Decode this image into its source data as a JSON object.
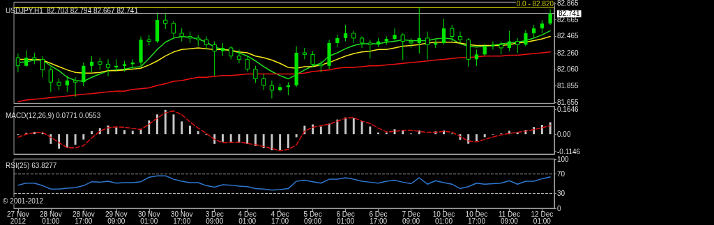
{
  "chart_data": [
    {
      "type": "candlestick",
      "title": "USDJPY,H1  82.703 82.794 82.667 82.741",
      "color": "#00e600",
      "marker": "none",
      "grid": false,
      "tick_labels": "y",
      "categories": [
        null,
        null,
        null,
        null,
        null,
        null,
        null,
        null,
        null,
        null,
        null,
        null,
        null,
        null,
        null,
        null,
        null,
        null,
        null,
        null,
        null,
        null,
        null,
        null,
        null,
        null,
        null,
        null,
        null,
        null,
        null,
        null,
        null,
        null,
        null,
        null,
        null,
        null,
        null,
        null,
        null,
        null,
        null,
        null,
        null,
        null,
        null,
        null,
        null,
        null,
        null,
        null,
        null,
        null,
        null,
        null,
        null,
        null,
        null,
        null,
        null,
        null,
        null,
        null,
        null,
        null
      ],
      "ohlc": [
        [
          82.2,
          82.25,
          82.02,
          82.1
        ],
        [
          82.1,
          82.29,
          82.09,
          82.2
        ],
        [
          82.2,
          82.26,
          82.12,
          82.18
        ],
        [
          82.18,
          82.22,
          81.96,
          82.05
        ],
        [
          82.05,
          82.08,
          81.78,
          81.9
        ],
        [
          81.9,
          81.95,
          81.8,
          81.86
        ],
        [
          81.86,
          81.98,
          81.78,
          81.92
        ],
        [
          81.92,
          81.96,
          81.72,
          81.9
        ],
        [
          81.9,
          82.14,
          81.85,
          82.1
        ],
        [
          82.1,
          82.22,
          82.02,
          82.15
        ],
        [
          82.15,
          82.2,
          82.05,
          82.12
        ],
        [
          82.12,
          82.18,
          81.97,
          82.08
        ],
        [
          82.08,
          82.18,
          82.03,
          82.1
        ],
        [
          82.1,
          82.16,
          82.03,
          82.12
        ],
        [
          82.12,
          82.18,
          82.05,
          82.14
        ],
        [
          82.14,
          82.46,
          82.1,
          82.42
        ],
        [
          82.42,
          82.48,
          82.35,
          82.4
        ],
        [
          82.4,
          82.75,
          82.38,
          82.66
        ],
        [
          82.66,
          82.74,
          82.55,
          82.62
        ],
        [
          82.62,
          82.65,
          82.44,
          82.5
        ],
        [
          82.5,
          82.56,
          82.4,
          82.46
        ],
        [
          82.46,
          82.52,
          82.38,
          82.44
        ],
        [
          82.44,
          82.48,
          82.34,
          82.42
        ],
        [
          82.42,
          82.46,
          82.3,
          82.36
        ],
        [
          82.36,
          82.4,
          81.98,
          82.28
        ],
        [
          82.28,
          82.38,
          82.22,
          82.32
        ],
        [
          82.32,
          82.34,
          82.18,
          82.22
        ],
        [
          82.22,
          82.3,
          82.13,
          82.18
        ],
        [
          82.18,
          82.22,
          82.03,
          82.06
        ],
        [
          82.06,
          82.1,
          81.89,
          81.94
        ],
        [
          81.94,
          82.0,
          81.8,
          81.86
        ],
        [
          81.86,
          81.92,
          81.7,
          81.8
        ],
        [
          81.8,
          81.88,
          81.78,
          81.84
        ],
        [
          81.84,
          81.9,
          81.74,
          81.86
        ],
        [
          81.86,
          82.34,
          81.84,
          82.26
        ],
        [
          82.26,
          82.32,
          82.18,
          82.24
        ],
        [
          82.24,
          82.28,
          82.08,
          82.12
        ],
        [
          82.12,
          82.16,
          82.02,
          82.1
        ],
        [
          82.1,
          82.42,
          82.06,
          82.38
        ],
        [
          82.38,
          82.48,
          82.33,
          82.44
        ],
        [
          82.44,
          82.6,
          82.4,
          82.5
        ],
        [
          82.5,
          82.53,
          82.38,
          82.44
        ],
        [
          82.44,
          82.46,
          82.32,
          82.38
        ],
        [
          82.38,
          82.42,
          82.19,
          82.36
        ],
        [
          82.36,
          82.44,
          82.33,
          82.4
        ],
        [
          82.4,
          82.46,
          82.36,
          82.43
        ],
        [
          82.43,
          82.56,
          82.4,
          82.48
        ],
        [
          82.48,
          82.5,
          82.17,
          82.4
        ],
        [
          82.4,
          82.44,
          82.32,
          82.38
        ],
        [
          82.38,
          82.82,
          82.25,
          82.44
        ],
        [
          82.44,
          82.52,
          82.18,
          82.36
        ],
        [
          82.36,
          82.42,
          82.32,
          82.38
        ],
        [
          82.38,
          82.68,
          82.36,
          82.56
        ],
        [
          82.56,
          82.6,
          82.4,
          82.46
        ],
        [
          82.46,
          82.52,
          82.38,
          82.42
        ],
        [
          82.42,
          82.44,
          82.09,
          82.18
        ],
        [
          82.18,
          82.3,
          82.1,
          82.24
        ],
        [
          82.24,
          82.37,
          82.22,
          82.34
        ],
        [
          82.34,
          82.4,
          82.3,
          82.36
        ],
        [
          82.36,
          82.4,
          82.24,
          82.32
        ],
        [
          82.32,
          82.53,
          82.28,
          82.4
        ],
        [
          82.4,
          82.44,
          82.26,
          82.36
        ],
        [
          82.36,
          82.54,
          82.34,
          82.5
        ],
        [
          82.5,
          82.6,
          82.44,
          82.56
        ],
        [
          82.56,
          82.66,
          82.5,
          82.62
        ],
        [
          82.62,
          82.794,
          82.6,
          82.741
        ]
      ],
      "series": [
        {
          "type": "line",
          "color": "#22dd22",
          "values": [
            82.14,
            82.15,
            82.17,
            82.17,
            82.1,
            82.04,
            81.96,
            81.92,
            81.91,
            81.96,
            82.0,
            82.04,
            82.05,
            82.06,
            82.08,
            82.09,
            82.19,
            82.3,
            82.39,
            82.44,
            82.46,
            82.45,
            82.43,
            82.39,
            82.33,
            82.3,
            82.29,
            82.26,
            82.22,
            82.16,
            82.09,
            82.03,
            81.98,
            81.94,
            81.99,
            82.05,
            82.1,
            82.13,
            82.22,
            82.26,
            82.31,
            82.35,
            82.37,
            82.37,
            82.37,
            82.39,
            82.4,
            82.42,
            82.41,
            82.41,
            82.41,
            82.43,
            82.44,
            82.43,
            82.37,
            82.34,
            82.33,
            82.34,
            82.35,
            82.37,
            82.38,
            82.39,
            82.41,
            82.44,
            82.48,
            82.53
          ]
        },
        {
          "type": "line",
          "color": "#f5e51a",
          "values": [
            82.18,
            82.18,
            82.18,
            82.17,
            82.13,
            82.09,
            82.05,
            82.02,
            82.01,
            82.01,
            82.02,
            82.04,
            82.04,
            82.05,
            82.06,
            82.07,
            82.11,
            82.16,
            82.22,
            82.27,
            82.3,
            82.31,
            82.32,
            82.31,
            82.3,
            82.3,
            82.29,
            82.27,
            82.26,
            82.22,
            82.2,
            82.17,
            82.13,
            82.08,
            82.07,
            82.09,
            82.09,
            82.11,
            82.14,
            82.18,
            82.22,
            82.25,
            82.27,
            82.28,
            82.3,
            82.3,
            82.32,
            82.34,
            82.35,
            82.36,
            82.38,
            82.39,
            82.39,
            82.39,
            82.38,
            82.36,
            82.35,
            82.35,
            82.35,
            82.35,
            82.36,
            82.38,
            82.39,
            82.41,
            82.43,
            82.46
          ]
        },
        {
          "type": "line",
          "color": "#ee1111",
          "values": [
            81.66,
            81.68,
            81.69,
            81.7,
            81.71,
            81.72,
            81.73,
            81.74,
            81.75,
            81.76,
            81.77,
            81.78,
            81.79,
            81.79,
            81.81,
            81.82,
            81.83,
            81.86,
            81.88,
            81.91,
            81.92,
            81.94,
            81.96,
            81.96,
            81.97,
            81.98,
            81.98,
            81.99,
            82.0,
            82.0,
            82.0,
            82.0,
            82.0,
            82.0,
            82.0,
            82.01,
            82.03,
            82.04,
            82.05,
            82.07,
            82.08,
            82.08,
            82.09,
            82.1,
            82.1,
            82.11,
            82.12,
            82.13,
            82.14,
            82.15,
            82.16,
            82.17,
            82.18,
            82.19,
            82.2,
            82.2,
            82.21,
            82.22,
            82.22,
            82.22,
            82.23,
            82.23,
            82.24,
            82.25,
            82.26,
            82.27
          ]
        }
      ],
      "ylim": [
        81.64,
        82.88
      ],
      "yticks": [
        81.655,
        81.855,
        {
          "value": 82.06,
          "label": "82.060"
        },
        {
          "value": 82.26,
          "label": "82.260"
        },
        82.465,
        82.665,
        82.865
      ],
      "ref_lines": [
        {
          "axis": "y",
          "value": 82.741,
          "label": "82.741",
          "color": "#999999",
          "line_style": "solid"
        },
        {
          "axis": "y",
          "value": 82.82,
          "color": "#c8c800",
          "line_style": "solid"
        }
      ],
      "annotations": [
        {
          "text": "0.0 - 82.820",
          "y": 82.82
        }
      ]
    },
    {
      "type": "bar",
      "title": "MACD(12,26,9) 0.0771 0.0553",
      "marker": "none",
      "grid": false,
      "tick_labels": "y",
      "categories": [
        null,
        null,
        null,
        null,
        null,
        null,
        null,
        null,
        null,
        null,
        null,
        null,
        null,
        null,
        null,
        null,
        null,
        null,
        null,
        null,
        null,
        null,
        null,
        null,
        null,
        null,
        null,
        null,
        null,
        null,
        null,
        null,
        null,
        null,
        null,
        null,
        null,
        null,
        null,
        null,
        null,
        null,
        null,
        null,
        null,
        null,
        null,
        null,
        null,
        null,
        null,
        null,
        null,
        null,
        null,
        null,
        null,
        null,
        null,
        null,
        null,
        null,
        null,
        null,
        null,
        null
      ],
      "series": [
        {
          "type": "bar",
          "color": "#c8c8c8",
          "values": [
            -0.005,
            0.008,
            0.015,
            0.01,
            -0.063,
            -0.095,
            -0.09,
            -0.07,
            -0.035,
            0.02,
            0.04,
            0.057,
            0.045,
            0.027,
            0.022,
            0.035,
            0.09,
            0.13,
            0.16,
            0.13,
            0.084,
            0.056,
            0.02,
            -0.005,
            -0.063,
            -0.05,
            -0.05,
            -0.056,
            -0.063,
            -0.077,
            -0.091,
            -0.105,
            -0.105,
            -0.091,
            -0.02,
            0.056,
            0.063,
            0.049,
            0.07,
            0.095,
            0.109,
            0.105,
            0.084,
            0.05,
            0.011,
            0.011,
            0.032,
            0.025,
            0.004,
            0.025,
            0,
            0.018,
            0.025,
            0.004,
            -0.038,
            -0.062,
            -0.045,
            -0.02,
            -0.003,
            0.004,
            0.022,
            0.014,
            0.028,
            0.046,
            0.06,
            0.0771
          ]
        },
        {
          "type": "line",
          "color": "#dd1111",
          "line_style": "dashed",
          "values": [
            -0.02,
            0,
            0.01,
            0.012,
            -0.02,
            -0.055,
            -0.088,
            -0.09,
            -0.075,
            -0.025,
            0.02,
            0.042,
            0.048,
            0.045,
            0.038,
            0.03,
            0.065,
            0.105,
            0.14,
            0.152,
            0.128,
            0.08,
            0.04,
            0.005,
            -0.035,
            -0.056,
            -0.055,
            -0.052,
            -0.06,
            -0.07,
            -0.08,
            -0.095,
            -0.108,
            -0.1,
            -0.07,
            0.02,
            0.045,
            0.055,
            0.065,
            0.085,
            0.105,
            0.108,
            0.085,
            0.07,
            0.04,
            0.015,
            0.018,
            0.025,
            0.026,
            0.018,
            0.012,
            0.012,
            0.018,
            0.014,
            -0.015,
            -0.045,
            -0.05,
            -0.035,
            -0.018,
            -0.005,
            0.005,
            0.012,
            0.02,
            0.03,
            0.042,
            0.0553
          ]
        }
      ],
      "ylim": [
        -0.131,
        0.181
      ],
      "yticks": [
        -0.1146,
        {
          "value": 0,
          "label": "0.00"
        },
        0.1646
      ]
    },
    {
      "type": "line",
      "title": "RSI(25) 63.8277",
      "marker": "none",
      "grid": false,
      "categories": [
        "27 Nov 2012",
        null,
        null,
        null,
        "28 Nov 01:00",
        null,
        null,
        null,
        "28 Nov 17:00",
        null,
        null,
        null,
        "29 Nov 09:00",
        null,
        null,
        null,
        "30 Nov 01:00",
        null,
        null,
        null,
        "30 Nov 17:00",
        null,
        null,
        null,
        "3 Dec 09:00",
        null,
        null,
        null,
        "4 Dec 01:00",
        null,
        null,
        null,
        "4 Dec 17:00",
        null,
        null,
        null,
        "5 Dec 09:00",
        null,
        null,
        null,
        "6 Dec 01:00",
        null,
        null,
        null,
        "6 Dec 17:00",
        null,
        null,
        null,
        "7 Dec 09:00",
        null,
        null,
        null,
        "10 Dec 01:00",
        null,
        null,
        null,
        "10 Dec 17:00",
        null,
        null,
        null,
        "11 Dec 09:00",
        null,
        null,
        null,
        "12 Dec 01:00",
        null
      ],
      "series": [
        {
          "type": "line",
          "color": "#2f78d0",
          "values": [
            47,
            51,
            51,
            46,
            39,
            39,
            41,
            42,
            46,
            54,
            53,
            55,
            51,
            52,
            52,
            54,
            63,
            66,
            66,
            59,
            55,
            52,
            52,
            46,
            43,
            48,
            47,
            45,
            44,
            40,
            39,
            37,
            38,
            40,
            55,
            57,
            54,
            51,
            59,
            59,
            62,
            59,
            55,
            53,
            51,
            55,
            57,
            53,
            50,
            62,
            49,
            56,
            52,
            49,
            40,
            44,
            51,
            49,
            50,
            51,
            56,
            49,
            55,
            55,
            60,
            63.8277
          ]
        }
      ],
      "ylim": [
        0,
        100
      ],
      "yticks": [
        0,
        30,
        70,
        100
      ],
      "ref_lines": [
        {
          "axis": "y",
          "value": 30,
          "color": "#bbbbbb",
          "line_style": "dashed"
        },
        {
          "axis": "y",
          "value": 70,
          "color": "#bbbbbb",
          "line_style": "dashed"
        }
      ],
      "annotations": [
        "© 2001-2012"
      ]
    }
  ]
}
